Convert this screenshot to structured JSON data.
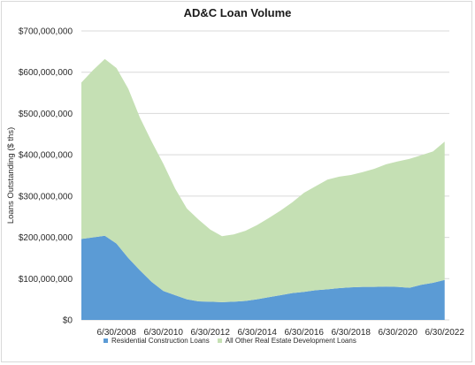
{
  "chart_data": {
    "type": "area",
    "stacked": true,
    "title": "AD&C Loan Volume",
    "ylabel": "Loans Outstanding ($ ths)",
    "xlabel": "",
    "ylim": [
      0,
      700000000
    ],
    "yticks": [
      "$0",
      "$100,000,000",
      "$200,000,000",
      "$300,000,000",
      "$400,000,000",
      "$500,000,000",
      "$600,000,000",
      "$700,000,000"
    ],
    "xticks": [
      "6/30/2008",
      "6/30/2010",
      "6/30/2012",
      "6/30/2014",
      "6/30/2016",
      "6/30/2018",
      "6/30/2020",
      "6/30/2022"
    ],
    "x": [
      2007.0,
      2007.5,
      2008.0,
      2008.5,
      2009.0,
      2009.5,
      2010.0,
      2010.5,
      2011.0,
      2011.5,
      2012.0,
      2012.5,
      2013.0,
      2013.5,
      2014.0,
      2014.5,
      2015.0,
      2015.5,
      2016.0,
      2016.5,
      2017.0,
      2017.5,
      2018.0,
      2018.5,
      2019.0,
      2019.5,
      2020.0,
      2020.5,
      2021.0,
      2021.5,
      2022.0,
      2022.5
    ],
    "legend_position": "bottom",
    "grid": true,
    "series": [
      {
        "name": "Residential Construction Loans",
        "color": "#5b9bd5",
        "values": [
          196000000,
          200000000,
          204000000,
          185000000,
          150000000,
          120000000,
          92000000,
          70000000,
          60000000,
          50000000,
          45000000,
          44000000,
          43000000,
          44000000,
          46000000,
          50000000,
          55000000,
          60000000,
          65000000,
          68000000,
          72000000,
          74000000,
          77000000,
          79000000,
          80000000,
          80000000,
          81000000,
          80000000,
          78000000,
          85000000,
          90000000,
          97000000
        ]
      },
      {
        "name": "All Other Real Estate Development Loans",
        "color": "#c5e0b4",
        "values": [
          379000000,
          405000000,
          428000000,
          425000000,
          410000000,
          370000000,
          340000000,
          308000000,
          258000000,
          220000000,
          198000000,
          175000000,
          160000000,
          163000000,
          170000000,
          180000000,
          192000000,
          205000000,
          220000000,
          240000000,
          252000000,
          266000000,
          270000000,
          272000000,
          278000000,
          286000000,
          296000000,
          304000000,
          312000000,
          314000000,
          318000000,
          335000000
        ]
      }
    ]
  }
}
